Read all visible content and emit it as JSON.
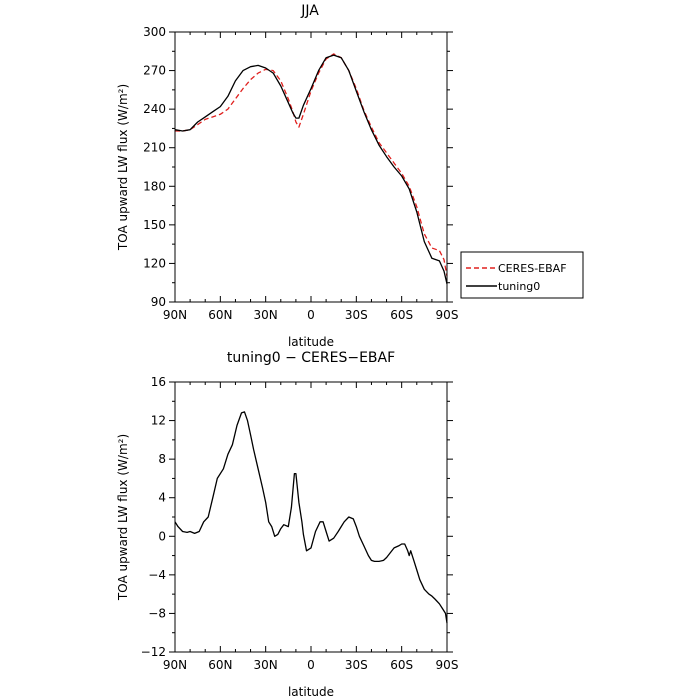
{
  "chart_data": [
    {
      "type": "line",
      "title": "JJA",
      "xlabel": "latitude",
      "ylabel": "TOA upward LW flux (W/m²)",
      "xlim": [
        90,
        -90
      ],
      "ylim": [
        90,
        300
      ],
      "x_ticks": [
        90,
        60,
        30,
        0,
        -30,
        -60,
        -90
      ],
      "x_tick_labels": [
        "90N",
        "60N",
        "30N",
        "0",
        "30S",
        "60S",
        "90S"
      ],
      "y_ticks": [
        90,
        120,
        150,
        180,
        210,
        240,
        270,
        300
      ],
      "legend": "outside-right",
      "series": [
        {
          "name": "CERES-EBAF",
          "color": "#e0201e",
          "dash": "dashed",
          "x": [
            90,
            85,
            80,
            75,
            70,
            65,
            60,
            55,
            50,
            45,
            40,
            35,
            30,
            25,
            20,
            15,
            12,
            10,
            8,
            5,
            0,
            -5,
            -10,
            -15,
            -20,
            -25,
            -30,
            -35,
            -40,
            -45,
            -50,
            -55,
            -60,
            -65,
            -70,
            -75,
            -80,
            -85,
            -88,
            -90
          ],
          "y": [
            223,
            223,
            224,
            228,
            232,
            234,
            236,
            240,
            248,
            256,
            263,
            268,
            271,
            270,
            262,
            248,
            238,
            230,
            226,
            236,
            254,
            268,
            279,
            283,
            280,
            270,
            256,
            239,
            226,
            214,
            206,
            198,
            190,
            180,
            164,
            143,
            132,
            130,
            123,
            110
          ]
        },
        {
          "name": "tuning0",
          "color": "#000000",
          "dash": "solid",
          "x": [
            90,
            85,
            80,
            75,
            70,
            65,
            60,
            55,
            50,
            45,
            40,
            35,
            30,
            25,
            20,
            15,
            12,
            10,
            8,
            5,
            0,
            -5,
            -10,
            -15,
            -20,
            -25,
            -30,
            -35,
            -40,
            -45,
            -50,
            -55,
            -60,
            -65,
            -70,
            -75,
            -80,
            -85,
            -88,
            -90
          ],
          "y": [
            224,
            223,
            224,
            230,
            234,
            238,
            242,
            250,
            262,
            270,
            273,
            274,
            272,
            268,
            258,
            245,
            237,
            233,
            233,
            243,
            256,
            270,
            280,
            282,
            280,
            270,
            254,
            238,
            224,
            212,
            203,
            195,
            188,
            178,
            160,
            137,
            124,
            122,
            114,
            104
          ]
        }
      ]
    },
    {
      "type": "line",
      "title": "tuning0 − CERES−EBAF",
      "xlabel": "latitude",
      "ylabel": "TOA upward LW flux (W/m²)",
      "xlim": [
        90,
        -90
      ],
      "ylim": [
        -12,
        16
      ],
      "x_ticks": [
        90,
        60,
        30,
        0,
        -30,
        -60,
        -90
      ],
      "x_tick_labels": [
        "90N",
        "60N",
        "30N",
        "0",
        "30S",
        "60S",
        "90S"
      ],
      "y_ticks": [
        -12,
        -8,
        -4,
        0,
        4,
        8,
        12,
        16
      ],
      "series": [
        {
          "color": "#000000",
          "dash": "solid",
          "x": [
            90,
            88,
            85,
            82,
            80,
            77,
            74,
            71,
            68,
            65,
            62,
            58,
            55,
            52,
            49,
            46,
            44,
            42,
            40,
            38,
            35,
            32,
            30,
            28,
            26,
            24,
            22,
            20,
            18,
            15,
            13,
            11,
            10,
            9,
            8,
            6,
            5,
            3,
            0,
            -3,
            -6,
            -8,
            -10,
            -12,
            -15,
            -18,
            -20,
            -22,
            -25,
            -28,
            -30,
            -32,
            -35,
            -38,
            -40,
            -42,
            -45,
            -48,
            -50,
            -52,
            -55,
            -58,
            -60,
            -62,
            -64,
            -65,
            -66,
            -68,
            -70,
            -72,
            -75,
            -78,
            -80,
            -82,
            -85,
            -87,
            -89,
            -90
          ],
          "y": [
            1.5,
            1.0,
            0.5,
            0.4,
            0.5,
            0.3,
            0.5,
            1.5,
            2.0,
            4.0,
            6.0,
            7.0,
            8.5,
            9.5,
            11.5,
            12.8,
            12.9,
            12.0,
            10.5,
            9.0,
            7.0,
            5.0,
            3.5,
            1.5,
            1.0,
            0.0,
            0.2,
            0.8,
            1.2,
            1.0,
            3.0,
            6.5,
            6.5,
            5.0,
            3.5,
            1.5,
            0.2,
            -1.5,
            -1.2,
            0.5,
            1.5,
            1.5,
            0.5,
            -0.5,
            -0.2,
            0.5,
            1.0,
            1.5,
            2.0,
            1.8,
            1.0,
            0.0,
            -1.0,
            -2.0,
            -2.5,
            -2.6,
            -2.6,
            -2.5,
            -2.2,
            -1.8,
            -1.2,
            -1.0,
            -0.8,
            -0.8,
            -1.5,
            -2.0,
            -1.5,
            -2.5,
            -3.5,
            -4.5,
            -5.5,
            -6.0,
            -6.2,
            -6.5,
            -7.0,
            -7.5,
            -8.0,
            -9.0
          ]
        }
      ]
    }
  ]
}
